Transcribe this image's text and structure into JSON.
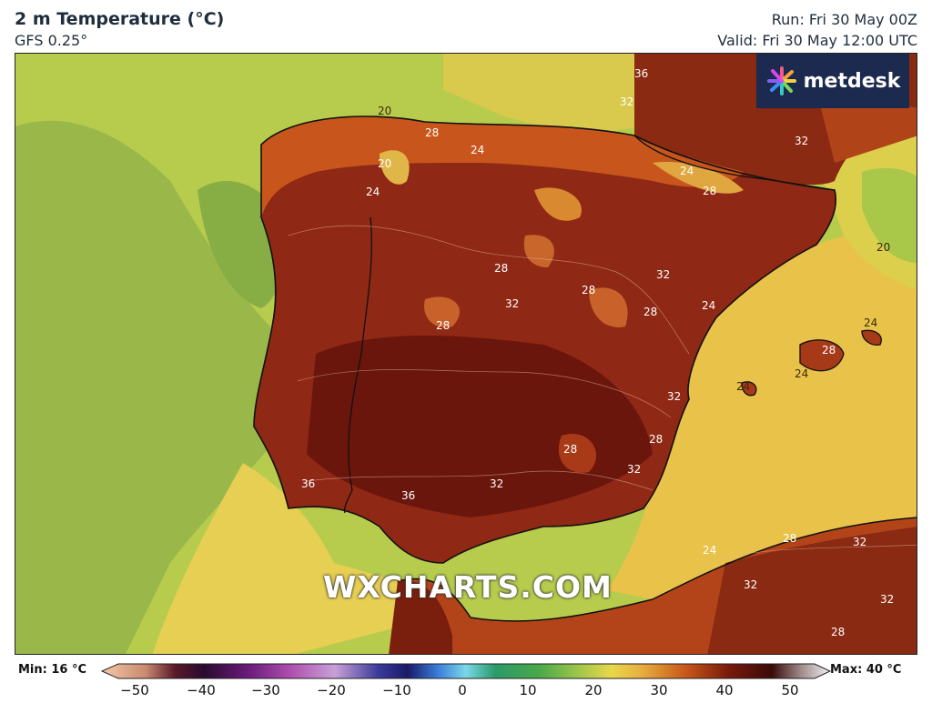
{
  "header": {
    "title": "2 m Temperature (°C)",
    "model": "GFS 0.25°",
    "run": "Run: Fri 30 May 00Z",
    "valid": "Valid: Fri 30 May 12:00 UTC"
  },
  "logo": {
    "text": "metdesk",
    "brand_color": "#1c2a4f"
  },
  "watermark": "WXCHARTS.COM",
  "colorbar": {
    "min_label": "Min: 16 °C",
    "max_label": "Max: 40 °C",
    "ticks": [
      "−50",
      "−40",
      "−30",
      "−20",
      "−10",
      "0",
      "10",
      "20",
      "30",
      "40",
      "50"
    ]
  },
  "contour_labels": [
    {
      "text": "36"
    },
    {
      "text": "32"
    },
    {
      "text": "20"
    },
    {
      "text": "28"
    },
    {
      "text": "24"
    },
    {
      "text": "20"
    },
    {
      "text": "24"
    },
    {
      "text": "28"
    },
    {
      "text": "24"
    },
    {
      "text": "32"
    },
    {
      "text": "28"
    },
    {
      "text": "32"
    },
    {
      "text": "32"
    },
    {
      "text": "28"
    },
    {
      "text": "28"
    },
    {
      "text": "28"
    },
    {
      "text": "24"
    },
    {
      "text": "20"
    },
    {
      "text": "24"
    },
    {
      "text": "28"
    },
    {
      "text": "24"
    },
    {
      "text": "24"
    },
    {
      "text": "32"
    },
    {
      "text": "28"
    },
    {
      "text": "28"
    },
    {
      "text": "32"
    },
    {
      "text": "36"
    },
    {
      "text": "36"
    },
    {
      "text": "32"
    },
    {
      "text": "24"
    },
    {
      "text": "28"
    },
    {
      "text": "32"
    },
    {
      "text": "32"
    },
    {
      "text": "32"
    },
    {
      "text": "28"
    }
  ]
}
